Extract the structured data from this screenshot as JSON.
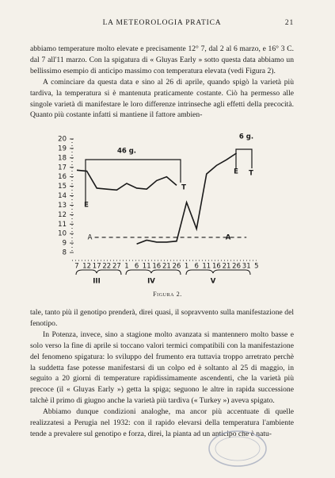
{
  "header": {
    "title": "LA METEOROLOGIA PRATICA",
    "page": "21"
  },
  "paragraphs_top": [
    "abbiamo temperature molto elevate e precisamente 12° 7, dal 2 al 6 marzo, e 16° 3 C. dal 7 all'11 marzo. Con la spigatura di « Gluyas Early » sotto questa data abbiamo un bellissimo esempio di anticipo massimo con temperatura elevata (vedi Figura 2).",
    "A cominciare da questa data e sino al 26 di aprile, quando spigò la varietà più tardiva, la temperatura si è mantenuta praticamente costante. Ciò ha permesso alle singole varietà di manifestare le loro differenze intrinseche agli effetti della precocità. Quanto più costante infatti si mantiene il fattore ambien-"
  ],
  "figure": {
    "chart_data": {
      "type": "line",
      "categories": [
        "7",
        "12",
        "17",
        "22",
        "27",
        "1",
        "6",
        "11",
        "16",
        "21",
        "26",
        "1",
        "6",
        "11",
        "16",
        "21",
        "26",
        "31",
        "5"
      ],
      "months": [
        "III",
        "IV",
        "V"
      ],
      "series": [
        {
          "color": "#1a1a1a",
          "values": [
            16.7,
            16.6,
            14.8,
            14.7,
            14.6,
            15.3,
            14.8,
            14.7,
            15.6,
            16.0,
            15.1,
            null,
            null,
            null,
            null,
            null,
            null,
            null,
            null
          ]
        },
        {
          "color": "#1a1a1a",
          "values": [
            null,
            null,
            null,
            null,
            null,
            null,
            8.9,
            9.3,
            9.1,
            9.1,
            9.2,
            13.3,
            10.5,
            16.3,
            17.2,
            17.8,
            18.5,
            null,
            null
          ]
        }
      ],
      "reference_line": {
        "label": "A",
        "value": 9.6
      },
      "annotations": [
        "46 g.",
        "6 g.",
        "E",
        "T",
        "E",
        "T",
        "A"
      ],
      "ylim": [
        8,
        20
      ],
      "yticks": [
        8,
        9,
        10,
        11,
        12,
        13,
        14,
        15,
        16,
        17,
        18,
        19,
        20
      ]
    },
    "caption": "Figura 2."
  },
  "paragraphs_bottom": [
    "tale, tanto più il genotipo prenderà, direi quasi, il sopravvento sulla manifestazione del fenotipo.",
    "In Potenza, invece, sino a stagione molto avanzata si mantennero molto basse e solo verso la fine di aprile si toccano valori termici compatibili con la manifestazione del fenomeno spigatura: lo sviluppo del frumento era tuttavia troppo arretrato perchè la suddetta fase potesse manifestarsi di un colpo ed è soltanto al 25 di maggio, in seguito a 20 giorni di temperature rapidissimamente ascendenti, che la varietà più precoce (il « Gluyas Early ») getta la spiga; seguono le altre in rapida successione talchè il primo di giugno anche la varietà più tardiva (« Turkey ») aveva spigato.",
    "Abbiamo dunque condizioni analoghe, ma ancor più accentuate di quelle realizzatesi a Perugia nel 1932: con il rapido elevarsi della temperatura l'ambiente tende a prevalere sul genotipo e forza, direi, la pianta ad un anticipo che è natu-"
  ]
}
